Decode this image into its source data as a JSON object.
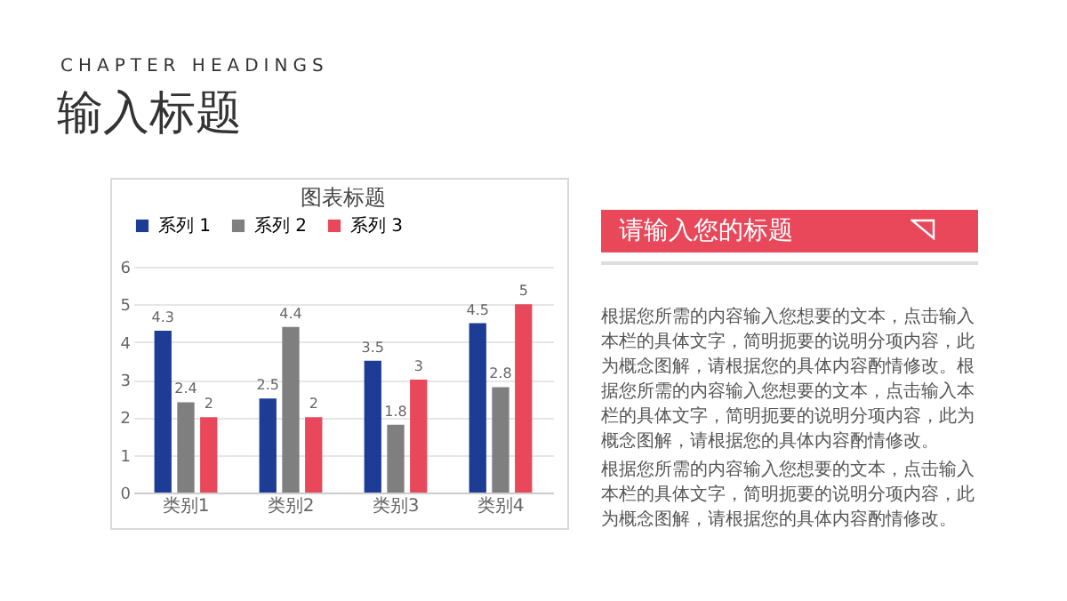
{
  "chart_data": {
    "type": "bar",
    "title": "图表标题",
    "categories": [
      "类别1",
      "类别2",
      "类别3",
      "类别4"
    ],
    "series": [
      {
        "name": "系列 1",
        "color": "#1c3c96",
        "values": [
          4.3,
          2.5,
          3.5,
          4.5
        ]
      },
      {
        "name": "系列 2",
        "color": "#7f7f7f",
        "values": [
          2.4,
          4.4,
          1.8,
          2.8
        ]
      },
      {
        "name": "系列 3",
        "color": "#e8485a",
        "values": [
          2,
          2,
          3,
          5
        ]
      }
    ],
    "ylim": [
      0,
      6
    ],
    "yticks": [
      0,
      1,
      2,
      3,
      4,
      5,
      6
    ],
    "grid": "y",
    "legend": "top",
    "data_labels": true,
    "annotations": [
      "CHAPTER HEADINGS",
      "输入标题",
      "请输入您的标题",
      "根据您所需的内容输入您想要的文本，点击输入本栏的具体文字，简明扼要的说明分项内容，此为概念图解，请根据您的具体内容酌情修改。根据您所需的内容输入您想要的文本，点击输入本栏的具体文字，简明扼要的说明分项内容，此为概念图解，请根据您的具体内容酌情修改。",
      "根据您所需的内容输入您想要的文本，点击输入本栏的具体文字，简明扼要的说明分项内容，此为概念图解，请根据您的具体内容酌情修改。"
    ]
  }
}
